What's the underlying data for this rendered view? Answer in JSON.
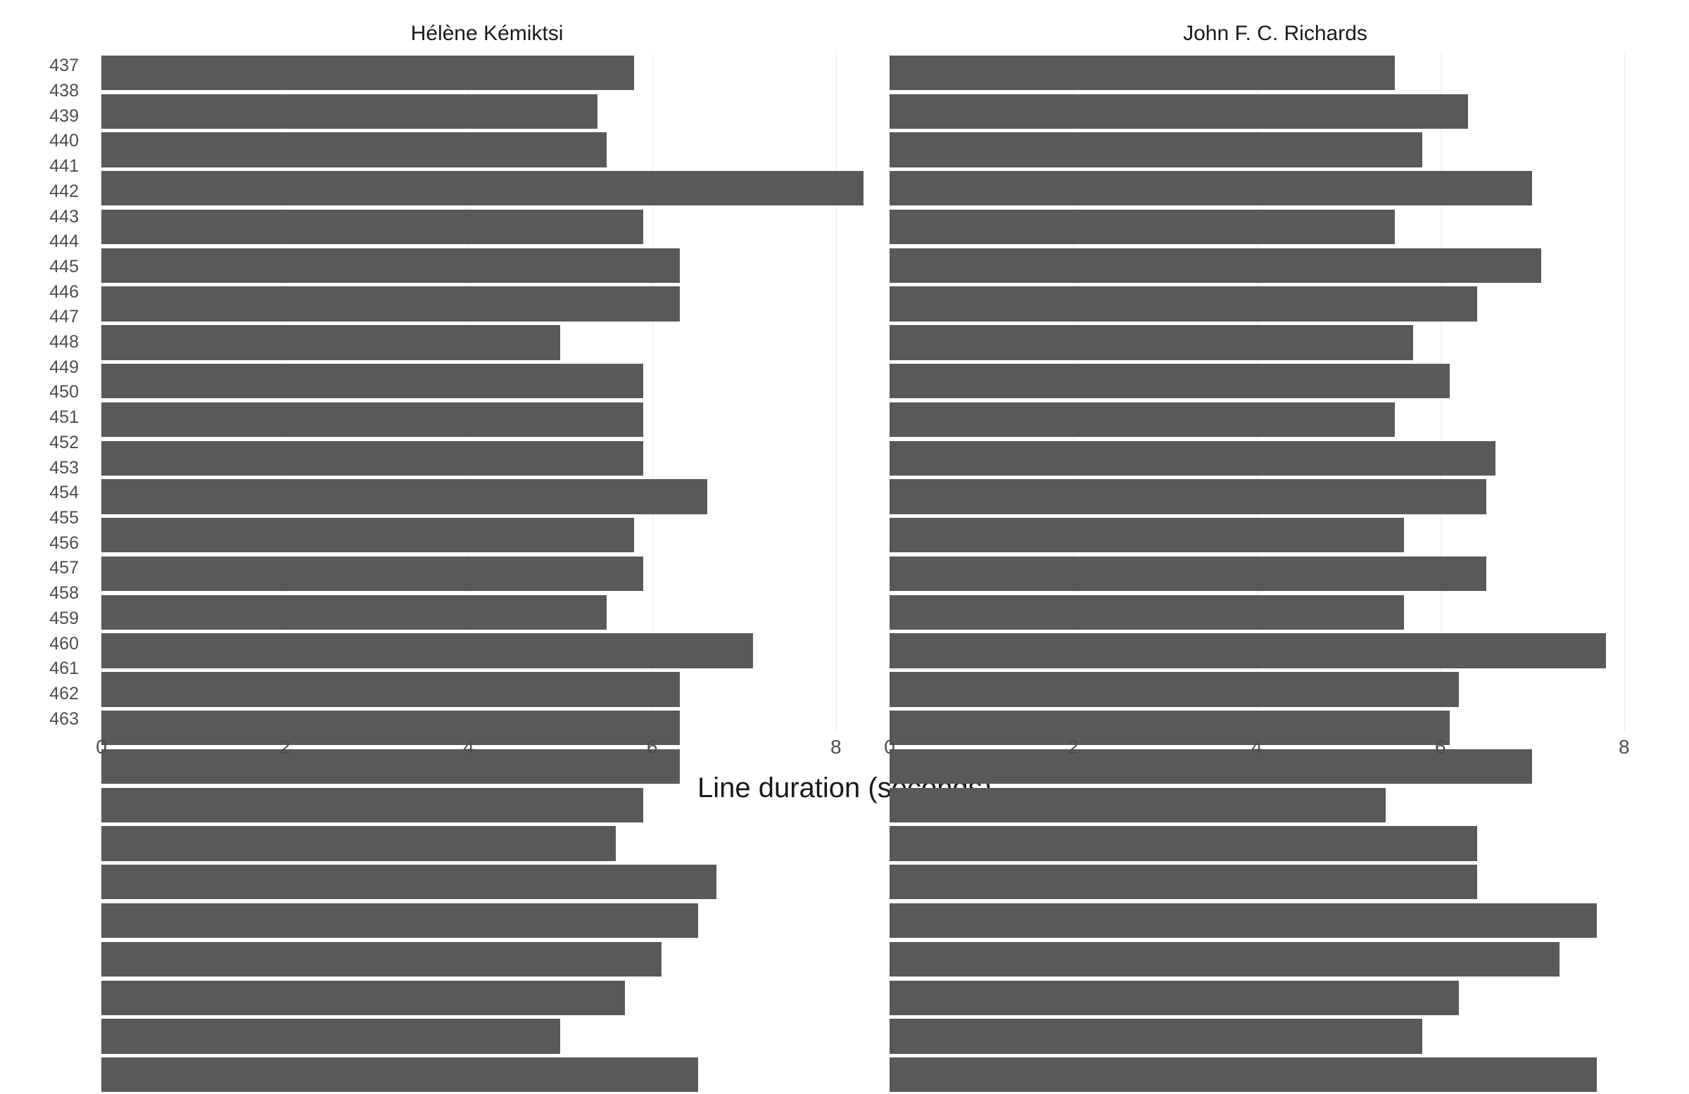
{
  "chart": {
    "type": "bar-horizontal-faceted",
    "xlabel": "Line duration (seconds)",
    "xlabel_fontsize": 40,
    "panel_title_fontsize": 30,
    "ytick_fontsize": 25,
    "xtick_fontsize": 28,
    "background_color": "#ffffff",
    "grid_color": "#ebebeb",
    "bar_color": "#595959",
    "text_color": "#1a1a1a",
    "tick_text_color": "#4d4d4d",
    "bar_gap_ratio": 0.1,
    "xlim": [
      0,
      8.4
    ],
    "xticks": [
      0,
      2,
      4,
      6,
      8
    ],
    "categories": [
      "437",
      "438",
      "439",
      "440",
      "441",
      "442",
      "443",
      "444",
      "445",
      "446",
      "447",
      "448",
      "449",
      "450",
      "451",
      "452",
      "453",
      "454",
      "455",
      "456",
      "457",
      "458",
      "459",
      "460",
      "461",
      "462",
      "463"
    ],
    "panels": [
      {
        "title": "Hélène Kémiktsi",
        "values": [
          5.8,
          5.4,
          5.5,
          8.3,
          5.9,
          6.3,
          6.3,
          5.0,
          5.9,
          5.9,
          5.9,
          6.6,
          5.8,
          5.9,
          5.5,
          7.1,
          6.3,
          6.3,
          6.3,
          5.9,
          5.6,
          6.7,
          6.5,
          6.1,
          5.7,
          5.0,
          6.5
        ]
      },
      {
        "title": "John F. C. Richards",
        "values": [
          5.5,
          6.3,
          5.8,
          7.0,
          5.5,
          7.1,
          6.4,
          5.7,
          6.1,
          5.5,
          6.6,
          6.5,
          5.6,
          6.5,
          5.6,
          7.8,
          6.2,
          6.1,
          7.0,
          5.4,
          6.4,
          6.4,
          7.7,
          7.3,
          6.2,
          5.8,
          7.7
        ]
      }
    ]
  }
}
